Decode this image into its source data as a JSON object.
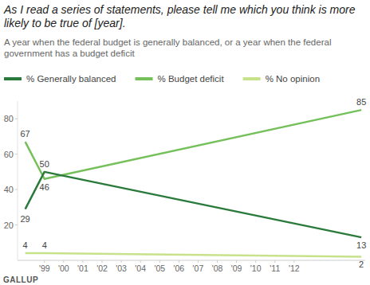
{
  "chart_data": {
    "type": "line",
    "title": "As I read a series of statements, please tell me which you think is more likely to be true of [year].",
    "subtitle": "A year when the federal budget is generally balanced, or a year when the federal government has a budget deficit",
    "source": "GALLUP",
    "x": [
      1998,
      1999,
      2015.5
    ],
    "xlim": [
      1997.6,
      2015.7
    ],
    "xticks": [
      {
        "value": 1999,
        "label": "'99"
      },
      {
        "value": 2000,
        "label": "'00"
      },
      {
        "value": 2001,
        "label": "'01"
      },
      {
        "value": 2002,
        "label": "'02"
      },
      {
        "value": 2003,
        "label": "'03"
      },
      {
        "value": 2004,
        "label": "'04"
      },
      {
        "value": 2005,
        "label": "'05"
      },
      {
        "value": 2006,
        "label": "'06"
      },
      {
        "value": 2007,
        "label": "'07"
      },
      {
        "value": 2008,
        "label": "'08"
      },
      {
        "value": 2009,
        "label": "'09"
      },
      {
        "value": 2010,
        "label": "'10"
      },
      {
        "value": 2011,
        "label": "'11"
      },
      {
        "value": 2012,
        "label": "'12"
      }
    ],
    "ylim": [
      0,
      90
    ],
    "yticks": [
      20,
      40,
      60,
      80
    ],
    "grid": false,
    "legend": "top",
    "data_labels": true,
    "series": [
      {
        "name": "% Generally balanced",
        "color": "#2a7a3b",
        "values": [
          29,
          50,
          13
        ]
      },
      {
        "name": "% Budget deficit",
        "color": "#76c05b",
        "values": [
          67,
          46,
          85
        ]
      },
      {
        "name": "% No opinion",
        "color": "#c8e28c",
        "values": [
          4,
          4,
          2
        ]
      }
    ]
  }
}
